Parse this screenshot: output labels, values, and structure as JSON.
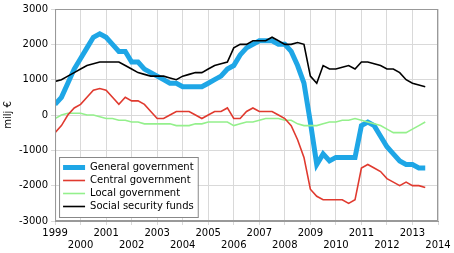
{
  "chart_data": {
    "type": "line",
    "y_label": "milj €",
    "x": [
      1999,
      1999.25,
      1999.5,
      1999.75,
      2000,
      2000.25,
      2000.5,
      2000.75,
      2001,
      2001.25,
      2001.5,
      2001.75,
      2002,
      2002.25,
      2002.5,
      2002.75,
      2003,
      2003.25,
      2003.5,
      2003.75,
      2004,
      2004.25,
      2004.5,
      2004.75,
      2005,
      2005.25,
      2005.5,
      2005.75,
      2006,
      2006.25,
      2006.5,
      2006.75,
      2007,
      2007.25,
      2007.5,
      2007.75,
      2008,
      2008.25,
      2008.5,
      2008.75,
      2009,
      2009.25,
      2009.5,
      2009.75,
      2010,
      2010.25,
      2010.5,
      2010.75,
      2011,
      2011.25,
      2011.5,
      2011.75,
      2012,
      2012.25,
      2012.5,
      2012.75,
      2013,
      2013.25,
      2013.5
    ],
    "series": [
      {
        "name": "General government",
        "color": "#1ea6e6",
        "values": [
          300,
          500,
          900,
          1300,
          1600,
          1900,
          2200,
          2300,
          2200,
          2000,
          1800,
          1800,
          1500,
          1500,
          1300,
          1200,
          1100,
          1000,
          900,
          900,
          800,
          800,
          800,
          800,
          900,
          1000,
          1100,
          1300,
          1400,
          1700,
          1900,
          2000,
          2100,
          2100,
          2100,
          2000,
          2000,
          1800,
          1400,
          900,
          -200,
          -1400,
          -1100,
          -1300,
          -1200,
          -1200,
          -1200,
          -1200,
          -300,
          -200,
          -300,
          -600,
          -900,
          -1100,
          -1300,
          -1400,
          -1400,
          -1500,
          -1500
        ]
      },
      {
        "name": "Central government",
        "color": "#e03a2f",
        "values": [
          -500,
          -300,
          0,
          200,
          300,
          500,
          700,
          750,
          700,
          500,
          300,
          500,
          400,
          400,
          300,
          100,
          -100,
          -100,
          0,
          100,
          100,
          100,
          0,
          -100,
          0,
          100,
          100,
          200,
          -100,
          -100,
          100,
          200,
          100,
          100,
          100,
          0,
          -100,
          -300,
          -700,
          -1200,
          -2100,
          -2300,
          -2400,
          -2400,
          -2400,
          -2400,
          -2500,
          -2400,
          -1500,
          -1400,
          -1500,
          -1600,
          -1800,
          -1900,
          -2000,
          -1900,
          -2000,
          -2000,
          -2050
        ]
      },
      {
        "name": "Local government",
        "color": "#94f08c",
        "values": [
          -100,
          0,
          50,
          50,
          50,
          0,
          0,
          -50,
          -100,
          -100,
          -150,
          -150,
          -200,
          -200,
          -250,
          -250,
          -250,
          -250,
          -250,
          -300,
          -300,
          -300,
          -250,
          -250,
          -200,
          -200,
          -200,
          -200,
          -300,
          -250,
          -200,
          -200,
          -150,
          -100,
          -100,
          -100,
          -150,
          -150,
          -250,
          -300,
          -300,
          -300,
          -250,
          -200,
          -200,
          -150,
          -150,
          -100,
          -150,
          -200,
          -250,
          -300,
          -400,
          -500,
          -500,
          -500,
          -400,
          -300,
          -200
        ]
      },
      {
        "name": "Social security funds",
        "color": "#000000",
        "values": [
          950,
          1000,
          1100,
          1200,
          1300,
          1400,
          1450,
          1500,
          1500,
          1500,
          1500,
          1400,
          1300,
          1200,
          1150,
          1100,
          1100,
          1100,
          1050,
          1000,
          1100,
          1150,
          1200,
          1200,
          1300,
          1400,
          1450,
          1500,
          1900,
          2000,
          2000,
          2100,
          2100,
          2100,
          2200,
          2100,
          2000,
          2000,
          2050,
          2000,
          1100,
          900,
          1400,
          1300,
          1300,
          1350,
          1400,
          1300,
          1500,
          1500,
          1450,
          1400,
          1300,
          1300,
          1200,
          1000,
          900,
          850,
          800
        ]
      }
    ],
    "xlim": [
      1999,
      2014
    ],
    "xticks": [
      1999,
      2000,
      2001,
      2002,
      2003,
      2004,
      2005,
      2006,
      2007,
      2008,
      2009,
      2010,
      2011,
      2012,
      2013,
      2014
    ],
    "ylim": [
      -3000,
      3000
    ],
    "yticks": [
      -3000,
      -2000,
      -1000,
      0,
      1000,
      2000,
      3000
    ],
    "grid": true,
    "legend": "lower left"
  }
}
